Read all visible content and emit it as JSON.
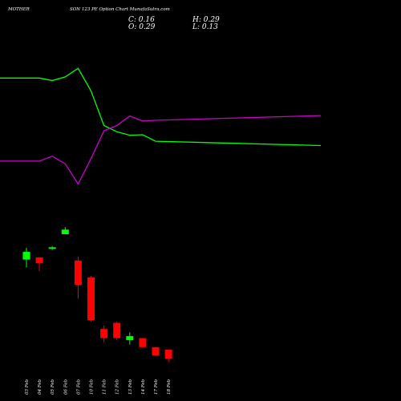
{
  "title": {
    "left": "MOTHER",
    "right": "SON  123 PE Option Chart MunafaSutra.com"
  },
  "ohlc": {
    "close": "C: 0.16",
    "open": "O: 0.29",
    "high": "H: 0.29",
    "low": "L: 0.13"
  },
  "colors": {
    "background": "#000000",
    "up": "#00ff00",
    "down": "#ff0000",
    "green_line": "#00ff00",
    "magenta_line": "#cc00cc",
    "text": "#ffffff"
  },
  "chart_data": {
    "type": "candlestick",
    "dates": [
      "03 Feb",
      "04 Feb",
      "05 Feb",
      "06 Feb",
      "07 Feb",
      "10 Feb",
      "11 Feb",
      "12 Feb",
      "13 Feb",
      "14 Feb",
      "17 Feb",
      "18 Feb"
    ],
    "date_labels": [
      "03 Feb",
      "04 Feb",
      "05 Feb",
      "06 Feb",
      "07 Feb",
      "10 Feb",
      "11 Feb",
      "12 Feb",
      "13 Feb",
      "14 Feb",
      "17 Feb",
      "18 Feb"
    ],
    "candles": [
      {
        "open": 1.32,
        "high": 1.74,
        "low": 1.1,
        "close": 1.58
      },
      {
        "open": 1.39,
        "high": 1.4,
        "low": 1.01,
        "close": 1.21
      },
      {
        "open": 1.71,
        "high": 1.81,
        "low": 1.66,
        "close": 1.76
      },
      {
        "open": 2.39,
        "high": 2.82,
        "low": 2.38,
        "close": 2.66
      },
      {
        "open": 1.29,
        "high": 1.42,
        "low": 0.53,
        "close": 0.73
      },
      {
        "open": 0.87,
        "high": 0.9,
        "low": 0.31,
        "close": 0.32
      },
      {
        "open": 0.26,
        "high": 0.28,
        "low": 0.19,
        "close": 0.21
      },
      {
        "open": 0.3,
        "high": 0.31,
        "low": 0.2,
        "close": 0.21
      },
      {
        "open": 0.2,
        "high": 0.24,
        "low": 0.18,
        "close": 0.22
      },
      {
        "open": 0.21,
        "high": 0.21,
        "low": 0.17,
        "close": 0.17
      },
      {
        "open": 0.17,
        "high": 0.17,
        "low": 0.14,
        "close": 0.14
      },
      {
        "open": 0.16,
        "high": 0.16,
        "low": 0.12,
        "close": 0.13
      }
    ],
    "series": [
      {
        "color": "#00ff00",
        "values": [
          3.06,
          3.06,
          2.91,
          3.13,
          3.73,
          2.35,
          1.16,
          1.02,
          0.95,
          0.96,
          0.84,
          0.77
        ]
      },
      {
        "color": "#cc00cc",
        "values": [
          0.56,
          0.56,
          0.62,
          0.53,
          0.35,
          0.59,
          1.04,
          1.16,
          1.41,
          1.27,
          1.29,
          1.42
        ]
      }
    ],
    "price_scale": "log",
    "ylim": [
      0.11,
      4.2
    ],
    "line_pane_ylim": [
      0.32,
      4.2
    ],
    "xlabel": "",
    "ylabel": ""
  }
}
